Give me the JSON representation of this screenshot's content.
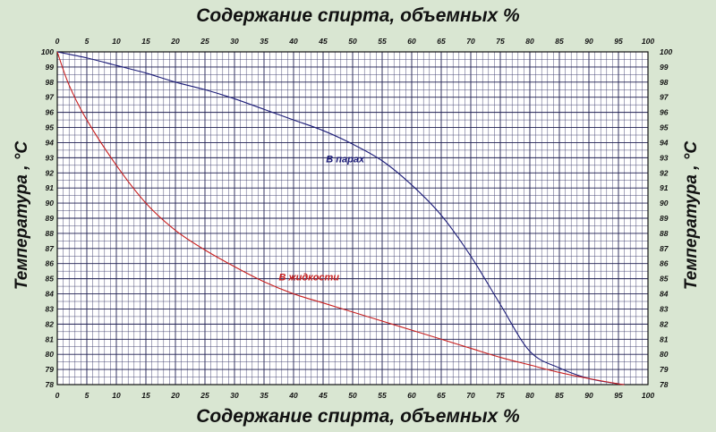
{
  "chart_data": {
    "type": "line",
    "title": "Содержание спирта, объемных %",
    "xlabel": "Содержание спирта, объемных %",
    "ylabel": "Температура , °С",
    "xlim": [
      0,
      100
    ],
    "ylim": [
      78,
      100
    ],
    "x_ticks": [
      0,
      5,
      10,
      15,
      20,
      25,
      30,
      35,
      40,
      45,
      50,
      55,
      60,
      65,
      70,
      75,
      80,
      85,
      90,
      95,
      100
    ],
    "y_ticks": [
      78,
      79,
      80,
      81,
      82,
      83,
      84,
      85,
      86,
      87,
      88,
      89,
      90,
      91,
      92,
      93,
      94,
      95,
      96,
      97,
      98,
      99,
      100
    ],
    "grid": true,
    "series": [
      {
        "name": "В парах",
        "color": "#1c1c78",
        "x": [
          0,
          5,
          10,
          15,
          20,
          25,
          30,
          35,
          40,
          45,
          50,
          55,
          60,
          65,
          70,
          75,
          80,
          85,
          90,
          95,
          96
        ],
        "y": [
          100,
          99.6,
          99.1,
          98.6,
          98.0,
          97.5,
          96.9,
          96.2,
          95.5,
          94.8,
          93.9,
          92.8,
          91.2,
          89.2,
          86.5,
          83.3,
          80.2,
          79.1,
          78.4,
          78.05,
          78.0
        ]
      },
      {
        "name": "В жидкости",
        "color": "#c81e1e",
        "x": [
          0,
          2,
          5,
          10,
          15,
          20,
          25,
          30,
          35,
          40,
          45,
          50,
          55,
          60,
          65,
          70,
          75,
          80,
          85,
          90,
          95,
          96
        ],
        "y": [
          100,
          97.8,
          95.5,
          92.5,
          90.0,
          88.2,
          86.9,
          85.8,
          84.8,
          84.0,
          83.4,
          82.8,
          82.2,
          81.6,
          81.0,
          80.4,
          79.8,
          79.3,
          78.8,
          78.4,
          78.05,
          78.0
        ]
      }
    ]
  }
}
